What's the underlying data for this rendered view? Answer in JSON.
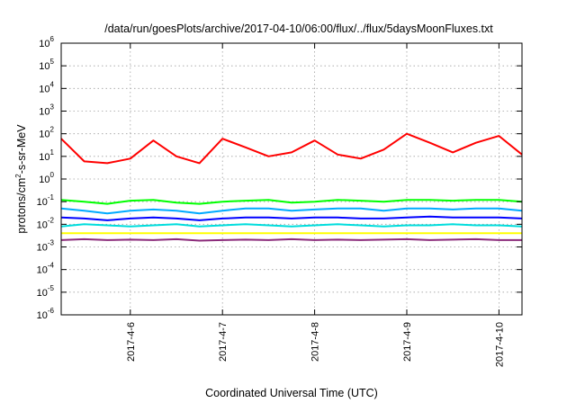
{
  "chart_data": {
    "type": "line",
    "title": "/data/run/goesPlots/archive/2017-04-10/06:00/flux/../flux/5daysMoonFluxes.txt",
    "xlabel": "Coordinated Universal Time (UTC)",
    "ylabel": {
      "prefix": "protons/cm",
      "sup": "2",
      "suffix": "-s-sr-MeV"
    },
    "scale": {
      "y": "log"
    },
    "xlim": [
      "2017-04-05 06:00",
      "2017-04-10 06:00"
    ],
    "ylim": [
      1e-06,
      1000000.0
    ],
    "grid": true,
    "legend": "none",
    "x_ticks": [
      {
        "t": "2017-04-06 00:00",
        "label": "2017-4-6"
      },
      {
        "t": "2017-04-07 00:00",
        "label": "2017-4-7"
      },
      {
        "t": "2017-04-08 00:00",
        "label": "2017-4-8"
      },
      {
        "t": "2017-04-09 00:00",
        "label": "2017-4-9"
      },
      {
        "t": "2017-04-10 00:00",
        "label": "2017-4-10"
      }
    ],
    "y_ticks": [
      {
        "v": 1e-06,
        "base": "10",
        "exp": "-6"
      },
      {
        "v": 1e-05,
        "base": "10",
        "exp": "-5"
      },
      {
        "v": 0.0001,
        "base": "10",
        "exp": "-4"
      },
      {
        "v": 0.001,
        "base": "10",
        "exp": "-3"
      },
      {
        "v": 0.01,
        "base": "10",
        "exp": "-2"
      },
      {
        "v": 0.1,
        "base": "10",
        "exp": "-1"
      },
      {
        "v": 1,
        "base": "10",
        "exp": "0"
      },
      {
        "v": 10,
        "base": "10",
        "exp": "1"
      },
      {
        "v": 100,
        "base": "10",
        "exp": "2"
      },
      {
        "v": 1000,
        "base": "10",
        "exp": "3"
      },
      {
        "v": 10000,
        "base": "10",
        "exp": "4"
      },
      {
        "v": 100000,
        "base": "10",
        "exp": "5"
      },
      {
        "v": 1000000,
        "base": "10",
        "exp": "6"
      }
    ],
    "x": [
      "2017-04-05 06:00",
      "2017-04-05 12:00",
      "2017-04-05 18:00",
      "2017-04-06 00:00",
      "2017-04-06 06:00",
      "2017-04-06 12:00",
      "2017-04-06 18:00",
      "2017-04-07 00:00",
      "2017-04-07 06:00",
      "2017-04-07 12:00",
      "2017-04-07 18:00",
      "2017-04-08 00:00",
      "2017-04-08 06:00",
      "2017-04-08 12:00",
      "2017-04-08 18:00",
      "2017-04-09 00:00",
      "2017-04-09 06:00",
      "2017-04-09 12:00",
      "2017-04-09 18:00",
      "2017-04-10 00:00",
      "2017-04-10 06:00"
    ],
    "series": [
      {
        "color": "#ff0000",
        "values": [
          60,
          6,
          5,
          8,
          50,
          10,
          5,
          60,
          25,
          10,
          15,
          50,
          12,
          8,
          20,
          100,
          40,
          15,
          40,
          80,
          12
        ]
      },
      {
        "color": "#00ff00",
        "values": [
          0.12,
          0.1,
          0.08,
          0.11,
          0.12,
          0.09,
          0.08,
          0.1,
          0.11,
          0.12,
          0.09,
          0.1,
          0.12,
          0.11,
          0.1,
          0.12,
          0.12,
          0.11,
          0.12,
          0.12,
          0.1
        ]
      },
      {
        "color": "#00aaff",
        "values": [
          0.05,
          0.04,
          0.03,
          0.04,
          0.045,
          0.04,
          0.03,
          0.04,
          0.05,
          0.05,
          0.04,
          0.045,
          0.05,
          0.05,
          0.04,
          0.05,
          0.05,
          0.045,
          0.05,
          0.05,
          0.04
        ]
      },
      {
        "color": "#0000ff",
        "values": [
          0.02,
          0.018,
          0.015,
          0.018,
          0.02,
          0.018,
          0.015,
          0.018,
          0.02,
          0.02,
          0.018,
          0.02,
          0.02,
          0.018,
          0.018,
          0.02,
          0.022,
          0.02,
          0.02,
          0.02,
          0.018
        ]
      },
      {
        "color": "#00dddd",
        "values": [
          0.008,
          0.01,
          0.009,
          0.008,
          0.009,
          0.01,
          0.008,
          0.009,
          0.01,
          0.009,
          0.008,
          0.009,
          0.01,
          0.009,
          0.008,
          0.009,
          0.009,
          0.01,
          0.009,
          0.009,
          0.008
        ]
      },
      {
        "color": "#ffff00",
        "values": [
          0.004,
          0.004,
          0.004,
          0.004,
          0.004,
          0.004,
          0.004,
          0.004,
          0.004,
          0.004,
          0.004,
          0.004,
          0.004,
          0.004,
          0.004,
          0.004,
          0.004,
          0.004,
          0.004,
          0.004,
          0.004
        ]
      },
      {
        "color": "#8b2a7a",
        "values": [
          0.002,
          0.0022,
          0.002,
          0.0021,
          0.002,
          0.0022,
          0.0019,
          0.002,
          0.0021,
          0.002,
          0.0022,
          0.002,
          0.0021,
          0.002,
          0.0021,
          0.0022,
          0.002,
          0.0021,
          0.0022,
          0.002,
          0.002
        ]
      }
    ]
  }
}
